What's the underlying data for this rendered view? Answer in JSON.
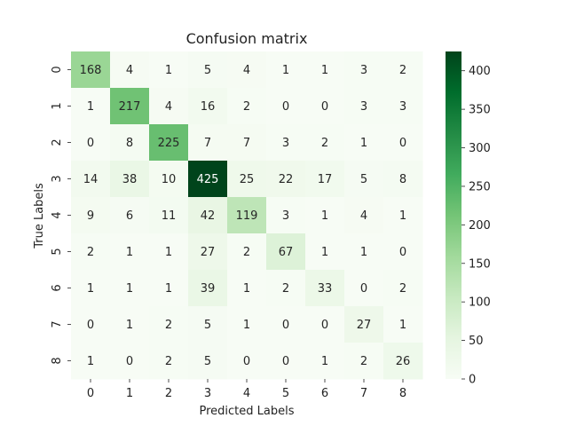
{
  "chart_data": {
    "type": "heatmap",
    "title": "Confusion matrix",
    "xlabel": "Predicted Labels",
    "ylabel": "True Labels",
    "x_categories": [
      "0",
      "1",
      "2",
      "3",
      "4",
      "5",
      "6",
      "7",
      "8"
    ],
    "y_categories": [
      "0",
      "1",
      "2",
      "3",
      "4",
      "5",
      "6",
      "7",
      "8"
    ],
    "values": [
      [
        168,
        4,
        1,
        5,
        4,
        1,
        1,
        3,
        2
      ],
      [
        1,
        217,
        4,
        16,
        2,
        0,
        0,
        3,
        3
      ],
      [
        0,
        8,
        225,
        7,
        7,
        3,
        2,
        1,
        0
      ],
      [
        14,
        38,
        10,
        425,
        25,
        22,
        17,
        5,
        8
      ],
      [
        9,
        6,
        11,
        42,
        119,
        3,
        1,
        4,
        1
      ],
      [
        2,
        1,
        1,
        27,
        2,
        67,
        1,
        1,
        0
      ],
      [
        1,
        1,
        1,
        39,
        1,
        2,
        33,
        0,
        2
      ],
      [
        0,
        1,
        2,
        5,
        1,
        0,
        0,
        27,
        1
      ],
      [
        1,
        0,
        2,
        5,
        0,
        0,
        1,
        2,
        26
      ]
    ],
    "colormap": "Greens",
    "vmin": 0,
    "vmax": 425,
    "colorbar_ticks": [
      0,
      50,
      100,
      150,
      200,
      250,
      300,
      350,
      400
    ],
    "grid": false,
    "legend": "colorbar-right"
  }
}
